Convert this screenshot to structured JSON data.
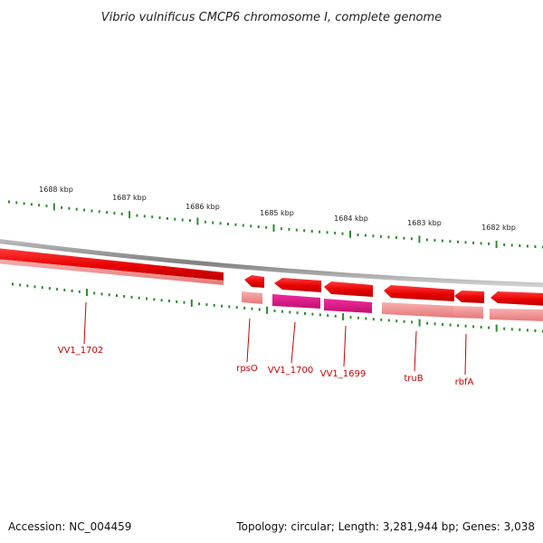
{
  "title": "Vibrio vulnificus CMCP6 chromosome I, complete genome",
  "accession_text": "Accession: NC_004459",
  "summary_text": "Topology: circular; Length: 3,281,944 bp; Genes: 3,038",
  "scale": {
    "unit": "kbp",
    "labels": [
      "1688 kbp",
      "1687 kbp",
      "1686 kbp",
      "1685 kbp",
      "1684 kbp",
      "1683 kbp",
      "1682 kbp"
    ]
  },
  "colors": {
    "backbone": "#8a8a8a",
    "tick": "#2e8b2e",
    "gene_red": "#ee0000",
    "gene_pink": "#f08a8a",
    "gene_magenta": "#e0148a",
    "label": "#cc0000"
  },
  "genes": [
    {
      "label": "VV1_1702"
    },
    {
      "label": "rpsO"
    },
    {
      "label": "VV1_1700"
    },
    {
      "label": "VV1_1699"
    },
    {
      "label": "truB"
    },
    {
      "label": "rbfA"
    }
  ]
}
